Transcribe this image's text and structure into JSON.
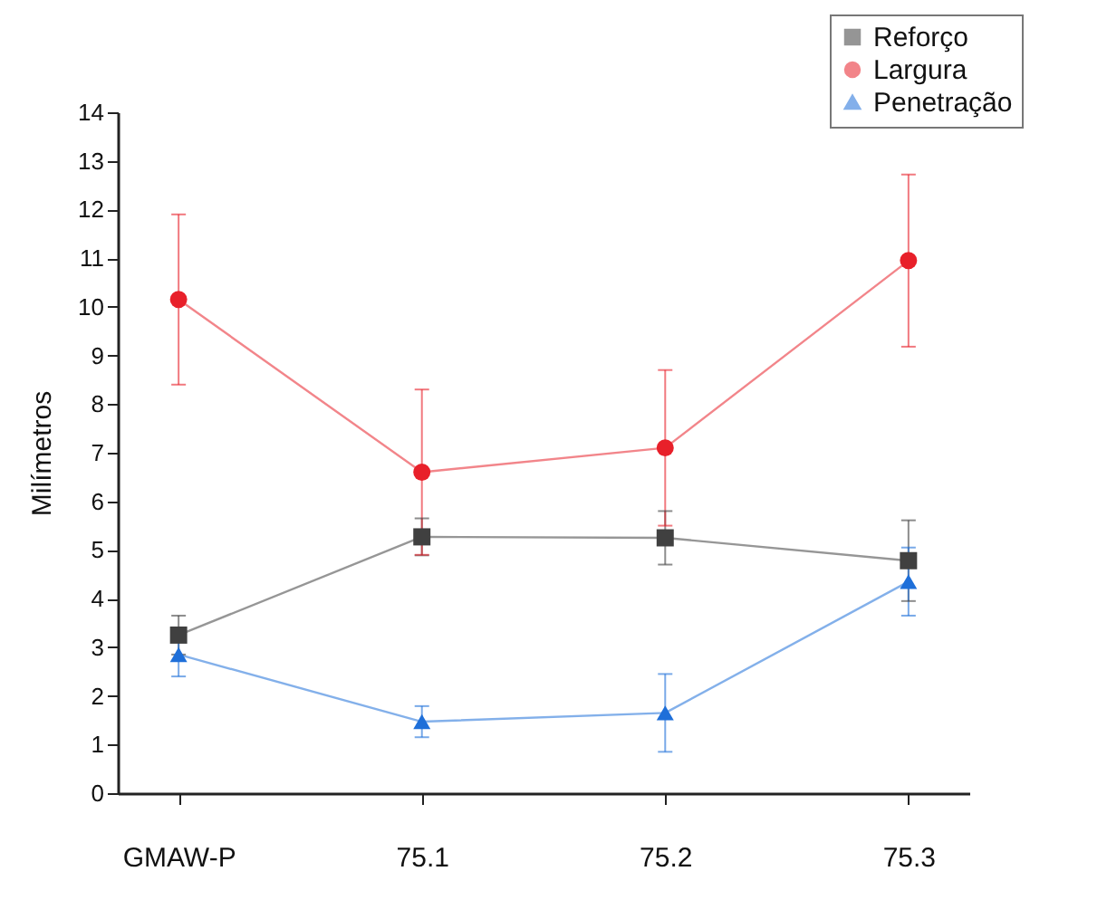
{
  "chart_data": {
    "type": "line",
    "ylabel": "Milímetros",
    "categories": [
      "GMAW-P",
      "75.1",
      "75.2",
      "75.3"
    ],
    "ylim": [
      0,
      14
    ],
    "yticks": [
      0,
      1,
      2,
      3,
      4,
      5,
      6,
      7,
      8,
      9,
      10,
      11,
      12,
      13,
      14
    ],
    "grid": false,
    "legend": "top right",
    "series": [
      {
        "name": "Reforço",
        "color": "#404040",
        "marker": "square",
        "values": [
          3.25,
          5.27,
          5.25,
          4.78
        ],
        "errors": [
          0.4,
          0.38,
          0.55,
          0.83
        ]
      },
      {
        "name": "Largura",
        "color": "#e8202a",
        "marker": "circle",
        "values": [
          10.15,
          6.6,
          7.1,
          10.95
        ],
        "errors": [
          1.75,
          1.7,
          1.6,
          1.77
        ]
      },
      {
        "name": "Penetração",
        "color": "#1e6fd9",
        "marker": "triangle",
        "values": [
          2.85,
          1.47,
          1.65,
          4.35
        ],
        "errors": [
          0.45,
          0.32,
          0.8,
          0.7
        ]
      }
    ]
  }
}
